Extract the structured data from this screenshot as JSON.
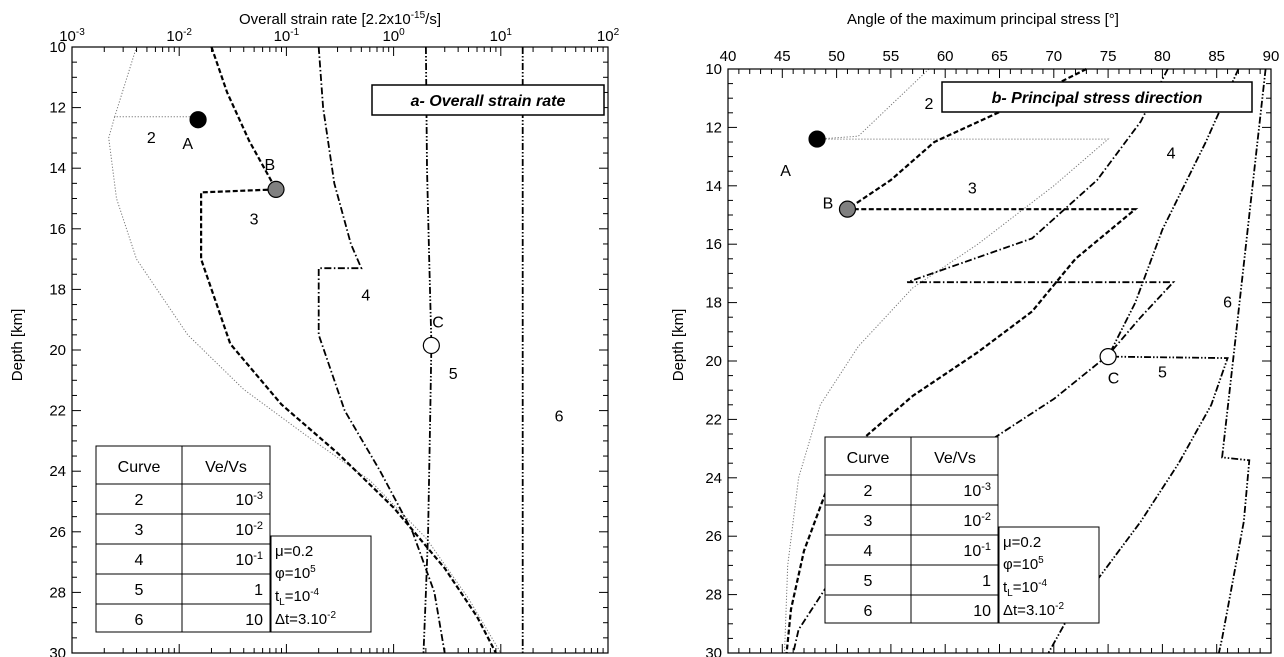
{
  "chart_data": [
    {
      "type": "line",
      "panel": "a",
      "xlabel": "Overall strain rate [2.2x10",
      "xlabel_exp": "-15",
      "xlabel_end": "/s]",
      "ylabel": "Depth [km]",
      "xscale": "log",
      "xlim": [
        0.001,
        100
      ],
      "ylim": [
        10,
        30
      ],
      "y_inverted": true,
      "x_axis_position": "top",
      "x_ticks": [
        {
          "value": 0.001,
          "base": "10",
          "exp": "-3"
        },
        {
          "value": 0.01,
          "base": "10",
          "exp": "-2"
        },
        {
          "value": 0.1,
          "base": "10",
          "exp": "-1"
        },
        {
          "value": 1,
          "base": "10",
          "exp": "0"
        },
        {
          "value": 10,
          "base": "10",
          "exp": "1"
        },
        {
          "value": 100,
          "base": "10",
          "exp": "2"
        }
      ],
      "y_ticks": [
        10,
        12,
        14,
        16,
        18,
        20,
        22,
        24,
        26,
        28,
        30
      ],
      "title_box": "a- Overall strain rate",
      "series": [
        {
          "curve": "2",
          "style": "dotted",
          "points": [
            [
              0.004,
              10
            ],
            [
              0.0025,
              12.3
            ],
            [
              0.013,
              12.3
            ],
            [
              0.015,
              12.4
            ]
          ],
          "branch": [
            [
              0.0025,
              12.3
            ],
            [
              0.0022,
              13.0
            ],
            [
              0.0026,
              15
            ],
            [
              0.004,
              17
            ],
            [
              0.012,
              19.5
            ],
            [
              0.04,
              21.3
            ],
            [
              0.15,
              22.8
            ],
            [
              0.6,
              24.3
            ],
            [
              2,
              26.2
            ],
            [
              5,
              28.2
            ],
            [
              10,
              30
            ]
          ]
        },
        {
          "curve": "3",
          "style": "dashed",
          "points": [
            [
              0.02,
              10
            ],
            [
              0.028,
              11.5
            ],
            [
              0.045,
              13.1
            ],
            [
              0.08,
              14.7
            ],
            [
              0.016,
              14.8
            ],
            [
              0.016,
              17
            ],
            [
              0.03,
              19.8
            ],
            [
              0.09,
              21.8
            ],
            [
              0.3,
              23.4
            ],
            [
              1,
              25.2
            ],
            [
              3,
              27.2
            ],
            [
              6,
              28.8
            ],
            [
              9,
              30
            ]
          ]
        },
        {
          "curve": "4",
          "style": "dash-dot",
          "points": [
            [
              0.2,
              10
            ],
            [
              0.22,
              12
            ],
            [
              0.28,
              14.5
            ],
            [
              0.4,
              16.5
            ],
            [
              0.5,
              17.3
            ],
            [
              0.2,
              17.3
            ],
            [
              0.2,
              19.5
            ],
            [
              0.35,
              22
            ],
            [
              0.75,
              24
            ],
            [
              1.5,
              26
            ],
            [
              2.4,
              28
            ],
            [
              3,
              30
            ]
          ]
        },
        {
          "curve": "5",
          "style": "dash-dot-dot",
          "points": [
            [
              2,
              10
            ],
            [
              2.05,
              14
            ],
            [
              2.15,
              17
            ],
            [
              2.25,
              19.8
            ],
            [
              2.2,
              22
            ],
            [
              2.1,
              26
            ],
            [
              2.0,
              28
            ],
            [
              1.9,
              30
            ]
          ]
        },
        {
          "curve": "6",
          "style": "dash-dot-dot",
          "points": [
            [
              16,
              10
            ],
            [
              16,
              30
            ]
          ]
        }
      ],
      "curve_labels": [
        {
          "text": "2",
          "x": 0.0055,
          "y": 13.0
        },
        {
          "text": "3",
          "x": 0.05,
          "y": 15.7
        },
        {
          "text": "4",
          "x": 0.55,
          "y": 18.2
        },
        {
          "text": "5",
          "x": 3.6,
          "y": 20.8
        },
        {
          "text": "6",
          "x": 35,
          "y": 22.2
        }
      ],
      "markers": [
        {
          "label": "A",
          "x": 0.015,
          "y": 12.4,
          "fill": "#000000"
        },
        {
          "label": "B",
          "x": 0.08,
          "y": 14.7,
          "fill": "#808080"
        },
        {
          "label": "C",
          "x": 2.25,
          "y": 19.85,
          "fill": "#ffffff"
        }
      ],
      "marker_labels": [
        {
          "text": "A",
          "x": 0.012,
          "y": 13.2
        },
        {
          "text": "B",
          "x": 0.07,
          "y": 13.9
        },
        {
          "text": "C",
          "x": 2.6,
          "y": 19.1
        }
      ]
    },
    {
      "type": "line",
      "panel": "b",
      "xlabel": "Angle of the maximum principal stress [°]",
      "ylabel": "Depth [km]",
      "xscale": "linear",
      "xlim": [
        40,
        90
      ],
      "ylim": [
        10,
        30
      ],
      "y_inverted": true,
      "x_axis_position": "top",
      "x_ticks": [
        40,
        45,
        50,
        55,
        60,
        65,
        70,
        75,
        80,
        85,
        90
      ],
      "y_ticks": [
        10,
        12,
        14,
        16,
        18,
        20,
        22,
        24,
        26,
        28,
        30
      ],
      "title_box": "b- Principal stress direction",
      "series": [
        {
          "curve": "2",
          "style": "dotted",
          "points": [
            [
              58.5,
              10
            ],
            [
              52,
              12.3
            ],
            [
              48.2,
              12.4
            ],
            [
              75,
              12.4
            ],
            [
              70,
              14
            ],
            [
              63,
              16
            ],
            [
              57,
              17.5
            ],
            [
              52,
              19.5
            ],
            [
              48.5,
              21.5
            ],
            [
              46.5,
              24
            ],
            [
              45.5,
              27
            ],
            [
              45.2,
              30
            ]
          ]
        },
        {
          "curve": "3",
          "style": "dashed",
          "points": [
            [
              73,
              10
            ],
            [
              66,
              11.3
            ],
            [
              59,
              12.5
            ],
            [
              55,
              13.8
            ],
            [
              51,
              14.8
            ],
            [
              77.5,
              14.8
            ],
            [
              72,
              16.5
            ],
            [
              68,
              18.3
            ],
            [
              63,
              19.7
            ],
            [
              57,
              21.2
            ],
            [
              52,
              22.8
            ],
            [
              49,
              24.5
            ],
            [
              47,
              26.5
            ],
            [
              45.8,
              28.5
            ],
            [
              45.4,
              30
            ]
          ]
        },
        {
          "curve": "4",
          "style": "dash-dot",
          "points": [
            [
              80.5,
              10
            ],
            [
              78,
              11.8
            ],
            [
              74,
              13.8
            ],
            [
              68,
              15.8
            ],
            [
              56.5,
              17.3
            ],
            [
              81,
              17.3
            ],
            [
              78,
              18.5
            ],
            [
              75,
              19.8
            ],
            [
              70,
              21.3
            ],
            [
              63,
              23
            ],
            [
              56,
              25
            ],
            [
              50,
              27.2
            ],
            [
              46.5,
              29.2
            ],
            [
              46,
              30
            ]
          ]
        },
        {
          "curve": "5",
          "style": "dash-dot-dot",
          "points": [
            [
              87,
              10
            ],
            [
              84,
              12.5
            ],
            [
              80,
              15.5
            ],
            [
              77.5,
              18
            ],
            [
              75,
              19.85
            ],
            [
              86,
              19.9
            ],
            [
              84.5,
              21.5
            ],
            [
              81.5,
              23.5
            ],
            [
              78,
              25.5
            ],
            [
              74,
              27.5
            ],
            [
              71,
              29
            ],
            [
              69.5,
              30
            ]
          ]
        },
        {
          "curve": "6",
          "style": "dash-dot-dot",
          "points": [
            [
              89.5,
              10
            ],
            [
              88,
              15
            ],
            [
              86.5,
              20
            ],
            [
              85.5,
              23.3
            ],
            [
              88,
              23.4
            ],
            [
              87.5,
              25.5
            ],
            [
              86.5,
              27.5
            ],
            [
              85.5,
              29.5
            ],
            [
              85.2,
              30
            ]
          ]
        }
      ],
      "curve_labels": [
        {
          "text": "2",
          "x": 58.5,
          "y": 11.2
        },
        {
          "text": "3",
          "x": 62.5,
          "y": 14.1
        },
        {
          "text": "4",
          "x": 80.8,
          "y": 12.9
        },
        {
          "text": "5",
          "x": 80,
          "y": 20.4
        },
        {
          "text": "6",
          "x": 86,
          "y": 18.0
        }
      ],
      "markers": [
        {
          "label": "A",
          "x": 48.2,
          "y": 12.4,
          "fill": "#000000"
        },
        {
          "label": "B",
          "x": 51,
          "y": 14.8,
          "fill": "#808080"
        },
        {
          "label": "C",
          "x": 75,
          "y": 19.85,
          "fill": "#ffffff"
        }
      ],
      "marker_labels": [
        {
          "text": "A",
          "x": 45.3,
          "y": 13.5
        },
        {
          "text": "B",
          "x": 49.2,
          "y": 14.6
        },
        {
          "text": "C",
          "x": 75.5,
          "y": 20.6
        }
      ]
    }
  ],
  "curve_table": {
    "headers": [
      "Curve",
      "Ve/Vs"
    ],
    "rows": [
      {
        "curve": "2",
        "base": "10",
        "exp": "-3"
      },
      {
        "curve": "3",
        "base": "10",
        "exp": "-2"
      },
      {
        "curve": "4",
        "base": "10",
        "exp": "-1"
      },
      {
        "curve": "5",
        "base": "1",
        "exp": ""
      },
      {
        "curve": "6",
        "base": "10",
        "exp": ""
      }
    ]
  },
  "params": {
    "mu": "μ=0.2",
    "phi_base": "φ=10",
    "phi_exp": "5",
    "tl_base": "t",
    "tl_sub": "L",
    "tl_val": "=10",
    "tl_exp": "-4",
    "dt_base": "Δt=3.10",
    "dt_exp": "-2"
  }
}
